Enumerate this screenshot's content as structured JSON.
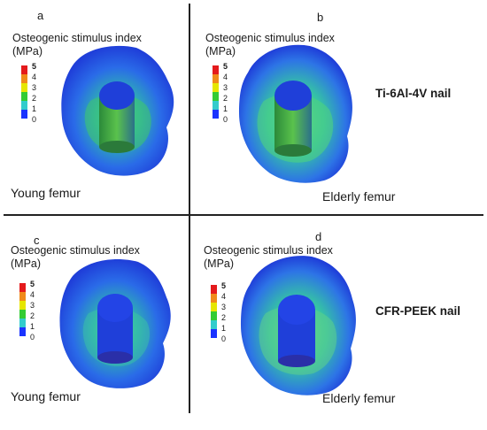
{
  "panels": [
    {
      "letter": "a",
      "title_line1": "Osteogenic stimulus index",
      "title_line2": "(MPa)",
      "caption": "Young femur"
    },
    {
      "letter": "b",
      "title_line1": "Osteogenic stimulus index",
      "title_line2": "(MPa)",
      "caption": "Elderly femur"
    },
    {
      "letter": "c",
      "title_line1": "Osteogenic stimulus index",
      "title_line2": "(MPa)",
      "caption": "Young femur"
    },
    {
      "letter": "d",
      "title_line1": "Osteogenic stimulus index",
      "title_line2": "(MPa)",
      "caption": "Elderly femur"
    }
  ],
  "scale": {
    "ticks": [
      "5",
      "4",
      "3",
      "2",
      "1",
      "0"
    ],
    "colors": [
      "#e41a1c",
      "#f08a1a",
      "#e6e600",
      "#33cc33",
      "#33cccc",
      "#1a33ff"
    ]
  },
  "nail_labels": {
    "top": "Ti-6Al-4V nail",
    "bottom": "CFR-PEEK nail"
  },
  "colors": {
    "bone_base": "#2356e6",
    "stress_high": "#3fc96a",
    "nail": "#1f3fd9"
  }
}
